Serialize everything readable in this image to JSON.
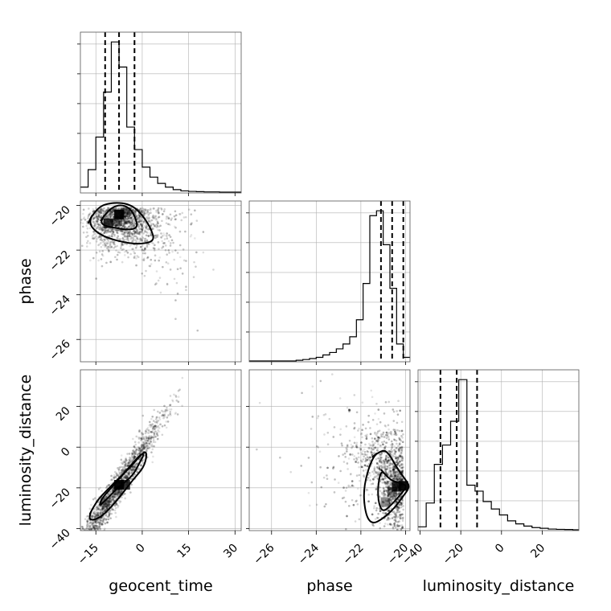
{
  "chart_data": {
    "type": "corner",
    "grid": true,
    "parameters": [
      {
        "name": "geocent_time",
        "label": "geocent_time",
        "range": [
          -20,
          32
        ],
        "ticks": [
          -15,
          0,
          15,
          30
        ],
        "tick_labels": [
          "−15",
          "0",
          "15",
          "30"
        ]
      },
      {
        "name": "phase",
        "label": "phase",
        "range": [
          -27,
          -19.8
        ],
        "ticks": [
          -26,
          -24,
          -22,
          -20
        ],
        "tick_labels": [
          "−26",
          "−24",
          "−22",
          "−20"
        ]
      },
      {
        "name": "luminosity_distance",
        "label": "luminosity_distance",
        "range": [
          -41,
          38
        ],
        "ticks": [
          -40,
          -20,
          0,
          20
        ],
        "tick_labels": [
          "−40",
          "−20",
          "0",
          "20"
        ]
      }
    ],
    "histograms": [
      {
        "parameter": "geocent_time",
        "bin_edges": [
          -20,
          -17.5,
          -15,
          -12.5,
          -10,
          -7.5,
          -5,
          -2.5,
          0,
          2.5,
          5,
          7.5,
          10,
          12.5,
          15,
          17.5,
          20,
          22.5,
          25,
          27.5,
          30,
          32
        ],
        "counts": [
          2,
          9,
          22,
          40,
          60,
          50,
          26,
          17,
          10,
          6,
          3.5,
          2,
          1,
          0.5,
          0.3,
          0.2,
          0.1,
          0.1,
          0,
          0,
          0
        ],
        "quantiles": [
          -12,
          -7.5,
          -2.5
        ]
      },
      {
        "parameter": "phase",
        "bin_edges": [
          -27,
          -26.7,
          -26.4,
          -26.1,
          -25.8,
          -25.5,
          -25.2,
          -24.9,
          -24.6,
          -24.3,
          -24,
          -23.7,
          -23.4,
          -23.1,
          -22.8,
          -22.5,
          -22.2,
          -21.9,
          -21.6,
          -21.3,
          -21,
          -20.7,
          -20.4,
          -20.1,
          -19.8
        ],
        "counts": [
          0,
          0,
          0,
          0,
          0,
          0,
          0,
          0.3,
          0.6,
          1,
          1.5,
          2.5,
          3.5,
          5,
          7,
          10,
          17,
          32,
          60,
          62,
          48,
          30,
          7,
          1.5
        ],
        "quantiles": [
          -21.1,
          -20.6,
          -20.1
        ]
      },
      {
        "parameter": "luminosity_distance",
        "bin_edges": [
          -41,
          -37,
          -33,
          -29,
          -25,
          -21,
          -17,
          -13,
          -9,
          -5,
          -1,
          3,
          7,
          11,
          15,
          19,
          23,
          27,
          31,
          35,
          38
        ],
        "counts": [
          2,
          18,
          44,
          57,
          73,
          101,
          30,
          26,
          19,
          14,
          10,
          6,
          4,
          2.5,
          1.5,
          1,
          0.5,
          0.3,
          0.2,
          0
        ],
        "quantiles": [
          -30,
          -22,
          -12
        ]
      }
    ],
    "pairs": [
      {
        "x": "geocent_time",
        "y": "phase",
        "peak": [
          -7.5,
          -20.4
        ],
        "contours": [
          [
            [
              -13.5,
              -20.7
            ],
            [
              -11,
              -20.2
            ],
            [
              -7.5,
              -19.95
            ],
            [
              -4,
              -20.1
            ],
            [
              -2,
              -20.6
            ],
            [
              -1.5,
              -21.0
            ],
            [
              -4.5,
              -21.1
            ],
            [
              -9,
              -21.0
            ],
            [
              -12.5,
              -20.9
            ]
          ],
          [
            [
              -17.5,
              -20.8
            ],
            [
              -15,
              -20.1
            ],
            [
              -9.5,
              -19.85
            ],
            [
              -3.5,
              -19.95
            ],
            [
              0.5,
              -20.5
            ],
            [
              3,
              -21.1
            ],
            [
              4,
              -21.6
            ],
            [
              -1,
              -21.75
            ],
            [
              -8,
              -21.6
            ],
            [
              -14,
              -21.3
            ]
          ]
        ],
        "dark_cells": [
          [
            -7.5,
            -20.4
          ],
          [
            -11,
            -20.8
          ],
          [
            -8,
            -20.7
          ],
          [
            -5.5,
            -20.3
          ]
        ]
      },
      {
        "x": "geocent_time",
        "y": "luminosity_distance",
        "peak": [
          -8,
          -20
        ],
        "contours": [
          [
            [
              -12.5,
              -27
            ],
            [
              -10.5,
              -24
            ],
            [
              -8,
              -20
            ],
            [
              -3,
              -14
            ],
            [
              -1,
              -8
            ],
            [
              0.5,
              -4
            ],
            [
              0,
              -3
            ],
            [
              -2,
              -6
            ],
            [
              -6,
              -13
            ],
            [
              -10,
              -20
            ],
            [
              -13,
              -25
            ],
            [
              -14,
              -29
            ]
          ],
          [
            [
              -17,
              -33
            ],
            [
              -15,
              -27
            ],
            [
              -12,
              -22
            ],
            [
              -8,
              -16
            ],
            [
              -4,
              -10
            ],
            [
              -0.5,
              -4
            ],
            [
              1,
              -2
            ],
            [
              1.5,
              -4
            ],
            [
              0.5,
              -10
            ],
            [
              -3,
              -16
            ],
            [
              -7,
              -24
            ],
            [
              -11,
              -31
            ],
            [
              -14,
              -35
            ],
            [
              -17,
              -36
            ]
          ]
        ],
        "dark_cells": [
          [
            -7.5,
            -18.5
          ],
          [
            -5.5,
            -18.5
          ],
          [
            -8,
            -21
          ],
          [
            -12,
            -27
          ]
        ]
      },
      {
        "x": "phase",
        "y": "luminosity_distance",
        "peak": [
          -20.1,
          -19
        ],
        "contours": [
          [
            [
              -21.1,
              -11
            ],
            [
              -20.8,
              -15
            ],
            [
              -20.5,
              -17
            ],
            [
              -20.1,
              -18
            ],
            [
              -19.95,
              -19.5
            ],
            [
              -20.2,
              -23
            ],
            [
              -20.6,
              -28
            ],
            [
              -21.0,
              -32
            ],
            [
              -21.2,
              -28
            ],
            [
              -21.25,
              -20
            ]
          ],
          [
            [
              -21.5,
              -5
            ],
            [
              -21.05,
              -1
            ],
            [
              -20.75,
              -3
            ],
            [
              -20.4,
              -10
            ],
            [
              -20.0,
              -16
            ],
            [
              -19.8,
              -19.5
            ],
            [
              -20.1,
              -24
            ],
            [
              -20.5,
              -30
            ],
            [
              -21.0,
              -35
            ],
            [
              -21.5,
              -38
            ],
            [
              -21.8,
              -33
            ],
            [
              -21.9,
              -20
            ]
          ]
        ],
        "dark_cells": [
          [
            -20.1,
            -19
          ],
          [
            -20.4,
            -19.5
          ],
          [
            -20.9,
            -27
          ],
          [
            -20.6,
            -22
          ]
        ]
      }
    ]
  }
}
